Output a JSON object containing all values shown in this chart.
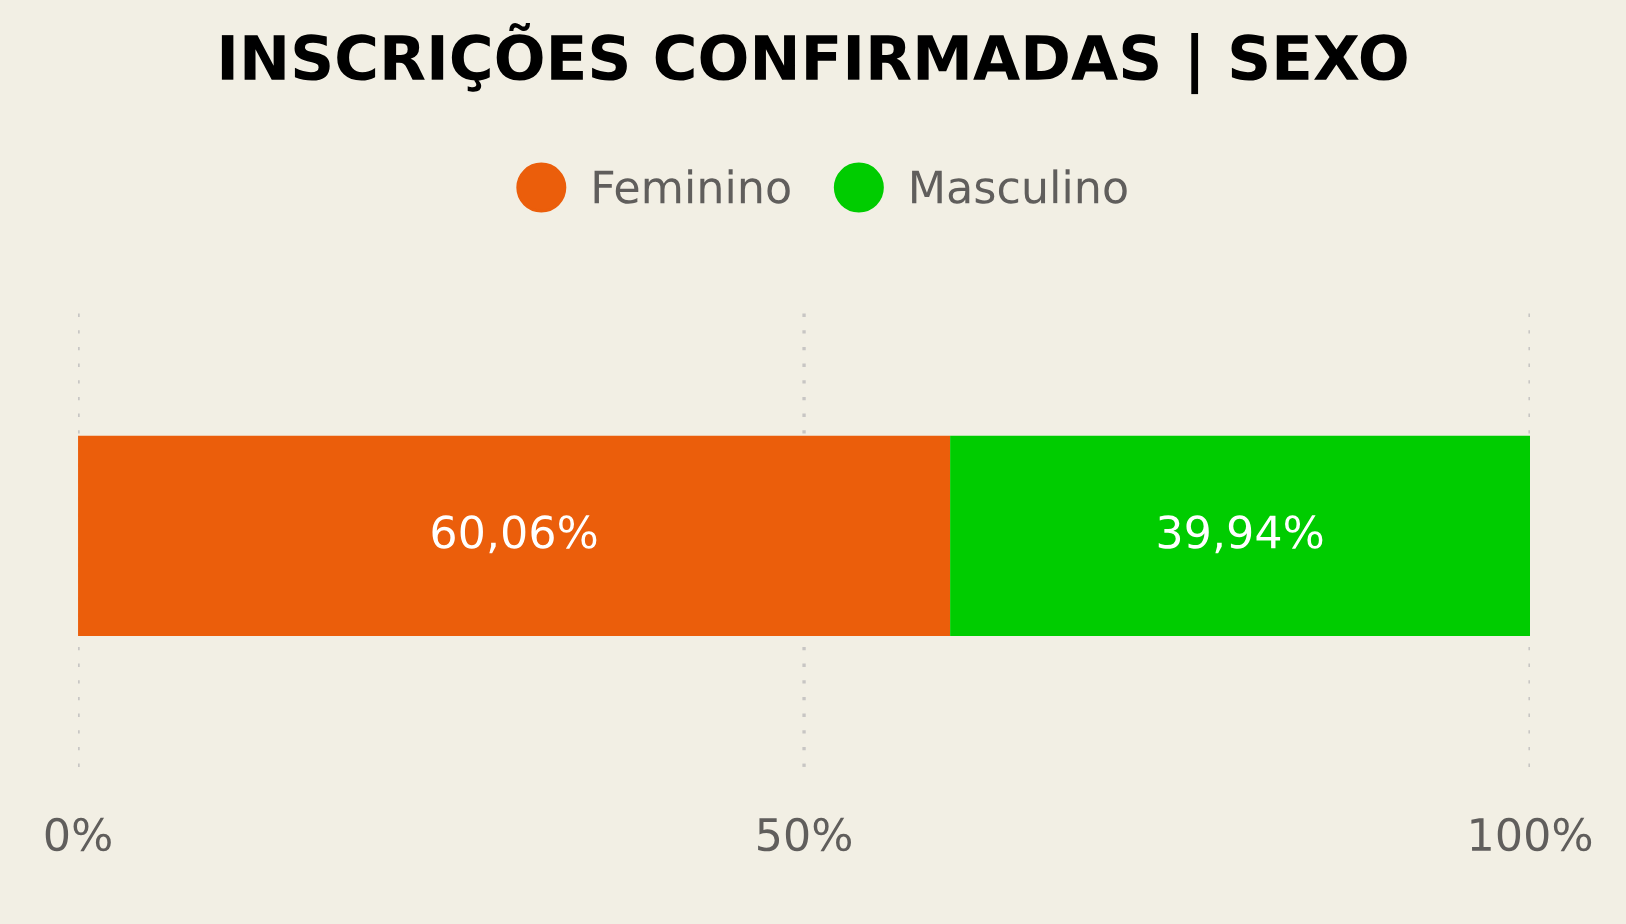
{
  "chart_data": {
    "type": "bar",
    "title": "INSCRIÇÕES CONFIRMADAS | SEXO",
    "orientation": "horizontal",
    "stacked": true,
    "categories": [
      null
    ],
    "series": [
      {
        "name": "Feminino",
        "color": "#eb5e0b",
        "values": [
          60.06
        ],
        "value_labels": [
          "60,06%"
        ]
      },
      {
        "name": "Masculino",
        "color": "#00cc00",
        "values": [
          39.94
        ],
        "value_labels": [
          "39,94%"
        ]
      }
    ],
    "xlim": [
      0,
      100
    ],
    "xticks": [
      {
        "value": 0,
        "label": "0%"
      },
      {
        "value": 50,
        "label": "50%"
      },
      {
        "value": 100,
        "label": "100%"
      }
    ],
    "grid": "x",
    "legend": "top",
    "tick_labels": "x"
  }
}
